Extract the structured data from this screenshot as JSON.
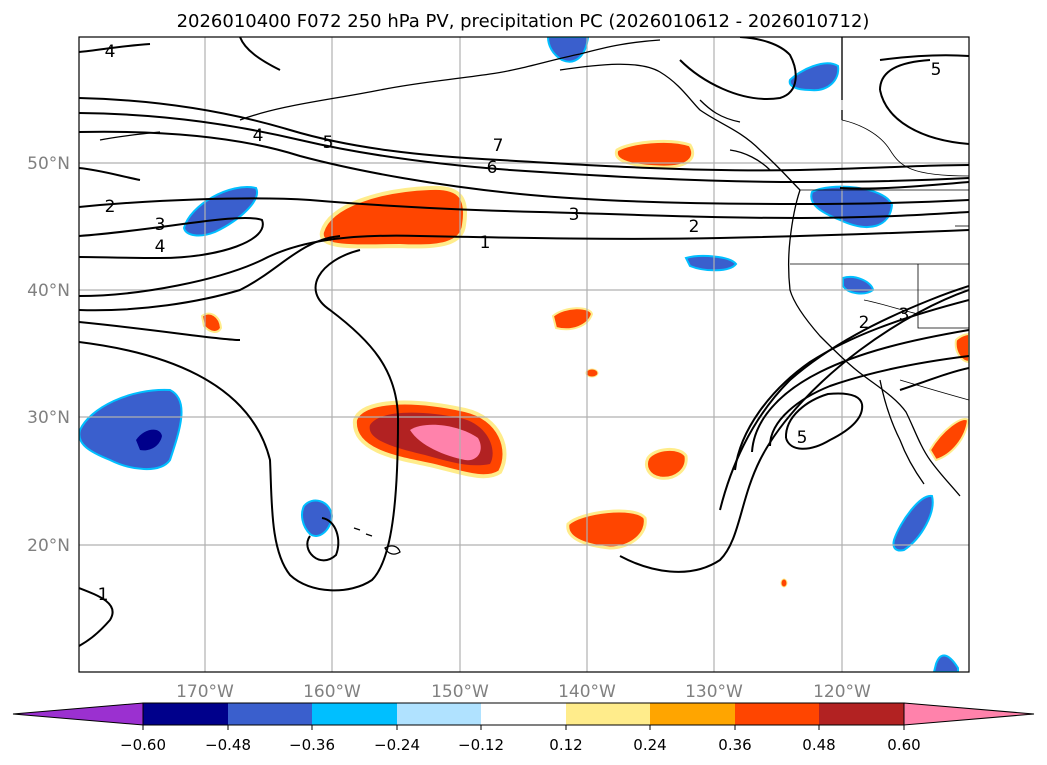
{
  "title": "2026010400 F072 250 hPa PV, precipitation PC (2026010612 - 2026010712)",
  "map": {
    "lat_labels": [
      "50°N",
      "40°N",
      "30°N",
      "20°N"
    ],
    "lon_labels": [
      "170°W",
      "160°W",
      "150°W",
      "140°W",
      "130°W",
      "120°W"
    ],
    "contour_labels": [
      "4",
      "4",
      "5",
      "7",
      "6",
      "2",
      "3",
      "4",
      "3",
      "2",
      "1",
      "1",
      "2",
      "3",
      "5",
      "5"
    ]
  },
  "colorbar": {
    "tick_labels": [
      "−0.60",
      "−0.48",
      "−0.36",
      "−0.24",
      "−0.12",
      "0.12",
      "0.24",
      "0.36",
      "0.48",
      "0.60"
    ],
    "bins": [
      {
        "color": "#9b30d0"
      },
      {
        "color": "#00008b"
      },
      {
        "color": "#3a5fcd"
      },
      {
        "color": "#00bfff"
      },
      {
        "color": "#b0e2ff"
      },
      {
        "color": "#ffffff"
      },
      {
        "color": "#ffec8b"
      },
      {
        "color": "#ffa500"
      },
      {
        "color": "#ff4500"
      },
      {
        "color": "#b22222"
      },
      {
        "color": "#ff82ab"
      }
    ]
  },
  "colors": {
    "grid": "#b0b0b0",
    "coast": "#000000",
    "axis_label": "#808080"
  }
}
